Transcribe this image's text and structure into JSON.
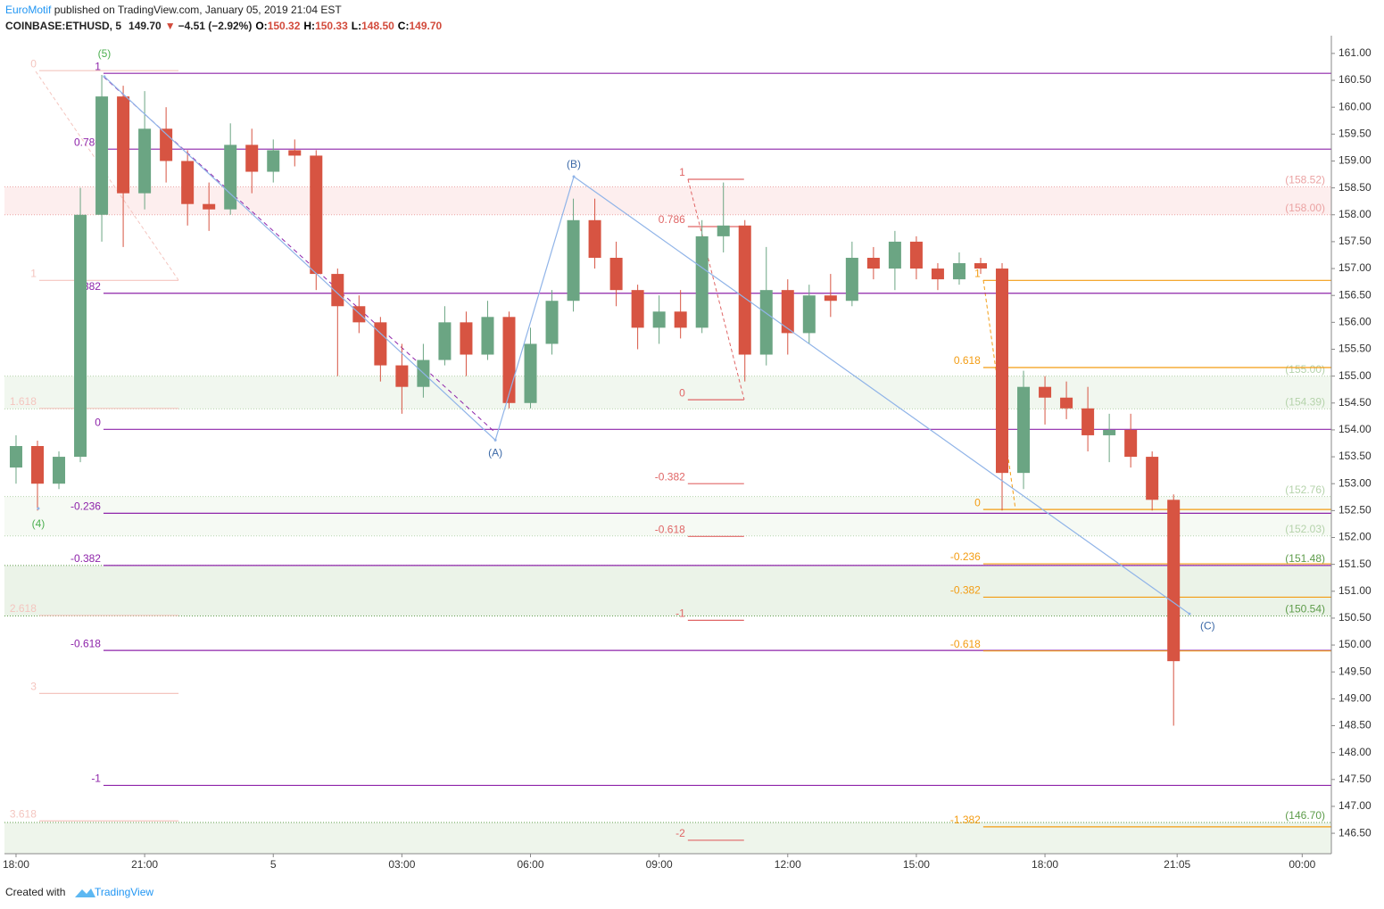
{
  "header": {
    "author": "EuroMotif",
    "published": "published on TradingView.com, January 05, 2019 21:04 EST",
    "symbol": "COINBASE:ETHUSD, 5",
    "last": "149.70",
    "change": "−4.51 (−2.92%)",
    "ohlc": [
      {
        "key": "O:",
        "value": "150.32"
      },
      {
        "key": "H:",
        "value": "150.33"
      },
      {
        "key": "L:",
        "value": "148.50"
      },
      {
        "key": "C:",
        "value": "149.70"
      }
    ]
  },
  "footer": {
    "text": "Created with",
    "brand": "TradingView"
  },
  "chart_data": {
    "type": "candlestick",
    "up_color": "#6ba583",
    "down_color": "#d75442",
    "x": [
      0,
      0.5,
      1,
      1.5,
      2,
      2.5,
      3,
      3.5,
      4,
      4.5,
      5,
      5.5,
      6,
      6.5,
      7,
      7.5,
      8,
      8.5,
      9,
      9.5,
      10,
      10.5,
      11,
      11.5,
      12,
      12.5,
      13,
      13.5,
      14,
      14.5,
      15,
      15.5,
      16,
      16.5,
      17,
      17.5,
      18,
      18.5,
      19,
      19.5,
      20,
      20.5,
      21,
      21.5,
      22,
      22.5,
      23,
      23.5,
      24,
      24.5,
      25,
      25.5,
      26,
      26.5,
      27
    ],
    "open": [
      153.3,
      153.7,
      153.0,
      153.5,
      158.0,
      160.2,
      158.4,
      159.6,
      159.0,
      158.2,
      158.1,
      159.3,
      158.8,
      159.2,
      159.1,
      156.9,
      156.3,
      156.0,
      155.2,
      154.8,
      155.3,
      156.0,
      155.4,
      156.1,
      154.5,
      155.6,
      156.4,
      157.9,
      157.2,
      156.6,
      155.9,
      156.2,
      155.9,
      157.6,
      157.8,
      155.4,
      156.6,
      155.8,
      156.5,
      156.4,
      157.2,
      157.0,
      157.5,
      157.0,
      156.8,
      157.1,
      157.0,
      153.2,
      154.8,
      154.6,
      154.4,
      153.9,
      154.0,
      153.5,
      152.7
    ],
    "high": [
      153.9,
      153.8,
      153.6,
      158.5,
      160.6,
      160.4,
      160.3,
      160.0,
      159.2,
      158.6,
      159.7,
      159.6,
      159.4,
      159.4,
      159.2,
      157.0,
      156.5,
      156.1,
      155.6,
      155.6,
      156.3,
      156.2,
      156.4,
      156.2,
      155.9,
      156.6,
      158.3,
      158.3,
      157.5,
      156.7,
      156.5,
      156.6,
      157.9,
      158.6,
      157.9,
      157.4,
      156.8,
      156.7,
      156.9,
      157.5,
      157.4,
      157.7,
      157.6,
      157.1,
      157.3,
      157.2,
      157.1,
      155.1,
      155.0,
      154.9,
      154.8,
      154.3,
      154.3,
      153.6,
      152.8
    ],
    "low": [
      153.0,
      152.5,
      152.9,
      153.4,
      157.5,
      157.4,
      158.1,
      158.6,
      157.8,
      157.7,
      158.0,
      158.4,
      158.6,
      158.9,
      156.6,
      155.0,
      155.8,
      154.9,
      154.3,
      154.6,
      155.2,
      155.0,
      155.3,
      154.4,
      154.4,
      155.4,
      156.2,
      157.0,
      156.3,
      155.5,
      155.6,
      155.7,
      155.8,
      157.3,
      154.9,
      155.2,
      155.4,
      155.6,
      156.1,
      156.3,
      156.8,
      156.6,
      156.8,
      156.6,
      156.7,
      156.9,
      152.5,
      152.9,
      154.1,
      154.2,
      153.6,
      153.4,
      153.3,
      152.5,
      148.5
    ],
    "close": [
      153.7,
      153.0,
      153.5,
      158.0,
      160.2,
      158.4,
      159.6,
      159.0,
      158.2,
      158.1,
      159.3,
      158.8,
      159.2,
      159.1,
      156.9,
      156.3,
      156.0,
      155.2,
      154.8,
      155.3,
      156.0,
      155.4,
      156.1,
      154.5,
      155.6,
      156.4,
      157.9,
      157.2,
      156.6,
      155.9,
      156.2,
      155.9,
      157.6,
      157.8,
      155.4,
      156.6,
      155.8,
      156.5,
      156.4,
      157.2,
      157.0,
      157.5,
      157.0,
      156.8,
      157.1,
      157.0,
      153.2,
      154.8,
      154.6,
      154.4,
      153.9,
      154.0,
      153.5,
      152.7,
      149.7
    ],
    "xlim": [
      -0.27,
      30.68
    ],
    "ylim": [
      146.12,
      161.33
    ],
    "xticks": [
      {
        "value": 0,
        "label": "18:00"
      },
      {
        "value": 3,
        "label": "21:00"
      },
      {
        "value": 6,
        "label": "5"
      },
      {
        "value": 9,
        "label": "03:00"
      },
      {
        "value": 12,
        "label": "06:00"
      },
      {
        "value": 15,
        "label": "09:00"
      },
      {
        "value": 18,
        "label": "12:00"
      },
      {
        "value": 21,
        "label": "15:00"
      },
      {
        "value": 24,
        "label": "18:00"
      },
      {
        "value": 27.083,
        "label": "21:05"
      },
      {
        "value": 30,
        "label": "00:00"
      }
    ],
    "yticks": [
      {
        "value": 146.5,
        "label": "146.50"
      },
      {
        "value": 147,
        "label": "147.00"
      },
      {
        "value": 147.5,
        "label": "147.50"
      },
      {
        "value": 148,
        "label": "148.00"
      },
      {
        "value": 148.5,
        "label": "148.50"
      },
      {
        "value": 149,
        "label": "149.00"
      },
      {
        "value": 149.5,
        "label": "149.50"
      },
      {
        "value": 150,
        "label": "150.00"
      },
      {
        "value": 150.5,
        "label": "150.50"
      },
      {
        "value": 151,
        "label": "151.00"
      },
      {
        "value": 151.5,
        "label": "151.50"
      },
      {
        "value": 152,
        "label": "152.00"
      },
      {
        "value": 152.5,
        "label": "152.50"
      },
      {
        "value": 153,
        "label": "153.00"
      },
      {
        "value": 153.5,
        "label": "153.50"
      },
      {
        "value": 154,
        "label": "154.00"
      },
      {
        "value": 154.5,
        "label": "154.50"
      },
      {
        "value": 155,
        "label": "155.00"
      },
      {
        "value": 155.5,
        "label": "155.50"
      },
      {
        "value": 156,
        "label": "156.00"
      },
      {
        "value": 156.5,
        "label": "156.50"
      },
      {
        "value": 157,
        "label": "157.00"
      },
      {
        "value": 157.5,
        "label": "157.50"
      },
      {
        "value": 158,
        "label": "158.00"
      },
      {
        "value": 158.5,
        "label": "158.50"
      },
      {
        "value": 159,
        "label": "159.00"
      },
      {
        "value": 159.5,
        "label": "159.50"
      },
      {
        "value": 160,
        "label": "160.00"
      },
      {
        "value": 160.5,
        "label": "160.50"
      },
      {
        "value": 161,
        "label": "161.00"
      }
    ],
    "zones": [
      {
        "color": "#fdeeee",
        "label_color": "#eba3a3",
        "top": {
          "value": 158.52,
          "label": "(158.52)"
        },
        "bottom": {
          "value": 158.0,
          "label": "(158.00)"
        }
      },
      {
        "color": "#f1f7ef",
        "label_color": "#b5d3ab",
        "top": {
          "value": 155.0,
          "label": "(155.00)"
        },
        "bottom": {
          "value": 154.39,
          "label": "(154.39)"
        }
      },
      {
        "color": "#f6faf4",
        "label_color": "#b5d3ab",
        "top": {
          "value": 152.76,
          "label": "(152.76)"
        },
        "bottom": {
          "value": 152.03,
          "label": "(152.03)"
        }
      },
      {
        "color": "#ebf3e8",
        "label_color": "#5d9c4a",
        "top": {
          "value": 151.48,
          "label": "(151.48)"
        },
        "bottom": {
          "value": 150.54,
          "label": "(150.54)"
        }
      },
      {
        "color": "#eef5eb",
        "label_color": "#5d9c4a",
        "top": {
          "value": 146.7,
          "label": "(146.70)"
        }
      }
    ],
    "fibs": [
      {
        "color": "#f4c5bf",
        "x": [
          0.54,
          3.79
        ],
        "levels": [
          {
            "level": 0,
            "price": 160.68
          },
          {
            "level": 1,
            "price": 156.78
          },
          {
            "level": 1.618,
            "price": 154.4
          },
          {
            "level": 2.618,
            "price": 150.55
          },
          {
            "level": 3,
            "price": 149.1
          },
          {
            "level": 3.618,
            "price": 146.73
          }
        ]
      },
      {
        "color": "#8e24aa",
        "x": [
          2.04
        ],
        "levels": [
          {
            "level": 1,
            "price": 160.63
          },
          {
            "level": 0.786,
            "price": 159.22
          },
          {
            "level": 0.382,
            "price": 156.54
          },
          {
            "level": 0,
            "price": 154.01
          },
          {
            "level": -0.236,
            "price": 152.45
          },
          {
            "level": -0.382,
            "price": 151.48
          },
          {
            "level": -0.618,
            "price": 149.9
          },
          {
            "level": -1,
            "price": 147.39
          }
        ]
      },
      {
        "color": "#e06666",
        "x": [
          15.67,
          16.98
        ],
        "levels": [
          {
            "level": 1,
            "price": 158.66
          },
          {
            "level": 0.786,
            "price": 157.78
          },
          {
            "level": 0,
            "price": 154.56
          },
          {
            "level": -0.382,
            "price": 153.0
          },
          {
            "level": -0.618,
            "price": 152.02
          },
          {
            "level": -1,
            "price": 150.46
          },
          {
            "level": -2,
            "price": 146.37
          }
        ]
      },
      {
        "color": "#f39c12",
        "x": [
          22.56
        ],
        "levels": [
          {
            "level": 1,
            "price": 156.78
          },
          {
            "level": 0.618,
            "price": 155.16
          },
          {
            "level": 0,
            "price": 152.52
          },
          {
            "level": -0.236,
            "price": 151.51
          },
          {
            "level": -0.382,
            "price": 150.89
          },
          {
            "level": -0.618,
            "price": 149.89
          },
          {
            "level": -1.382,
            "price": 146.62
          }
        ]
      }
    ],
    "waves": {
      "color": "#90b4e8",
      "points": [
        {
          "label": "(4)",
          "x": 0.52,
          "y": 152.54,
          "color": "#4caf50"
        },
        {
          "label": "(5)",
          "x": 2.06,
          "y": 160.57,
          "color": "#4caf50"
        },
        {
          "label": "(A)",
          "x": 11.18,
          "y": 153.81,
          "color": "#3d6aa8"
        },
        {
          "label": "(B)",
          "x": 13.01,
          "y": 158.71,
          "color": "#3d6aa8"
        },
        {
          "label": "(C)",
          "x": 27.37,
          "y": 150.58,
          "color": "#3d6aa8"
        }
      ]
    }
  }
}
